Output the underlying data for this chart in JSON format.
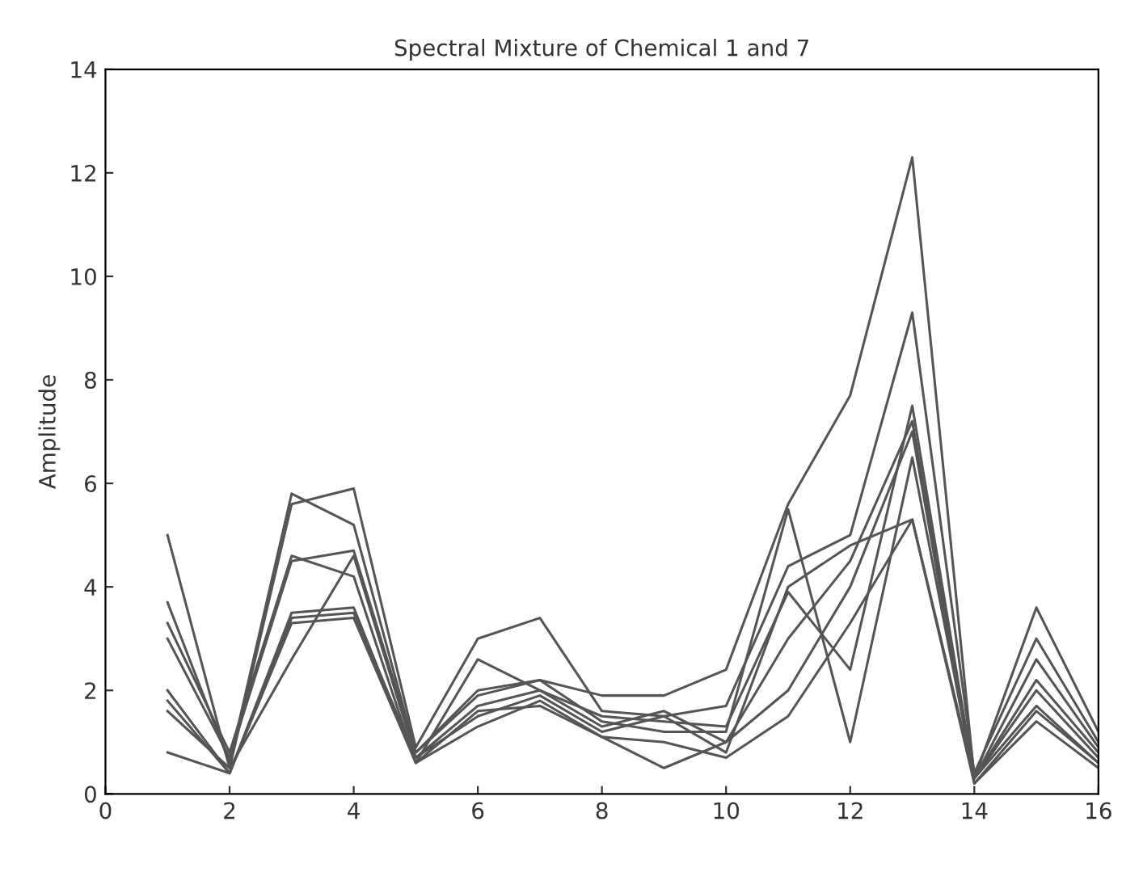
{
  "chart_data": {
    "type": "line",
    "title": "Spectral Mixture of Chemical 1 and 7",
    "ylabel": "Amplitude",
    "x": [
      1,
      2,
      3,
      4,
      5,
      6,
      7,
      8,
      9,
      10,
      11,
      12,
      13,
      14,
      15,
      16
    ],
    "series": [
      {
        "color": "#555555",
        "values": [
          3.7,
          0.6,
          5.8,
          5.2,
          0.8,
          2.0,
          2.2,
          1.9,
          1.9,
          2.4,
          5.6,
          7.7,
          12.3,
          0.3,
          3.6,
          1.2
        ]
      },
      {
        "color": "#555555",
        "values": [
          5.0,
          0.5,
          5.6,
          5.9,
          0.9,
          3.0,
          3.4,
          1.6,
          1.5,
          1.7,
          4.4,
          5.0,
          9.3,
          0.4,
          3.0,
          1.0
        ]
      },
      {
        "color": "#555555",
        "values": [
          3.3,
          0.8,
          4.6,
          4.2,
          0.6,
          2.6,
          2.0,
          1.5,
          1.4,
          1.3,
          3.9,
          2.4,
          7.5,
          0.3,
          2.6,
          0.9
        ]
      },
      {
        "color": "#555555",
        "values": [
          1.8,
          0.4,
          3.4,
          3.5,
          0.7,
          1.7,
          2.0,
          1.3,
          1.6,
          1.0,
          3.0,
          4.5,
          7.2,
          0.3,
          2.2,
          0.8
        ]
      },
      {
        "color": "#555555",
        "values": [
          0.8,
          0.4,
          3.3,
          3.4,
          0.6,
          1.6,
          1.7,
          1.1,
          1.0,
          0.7,
          1.5,
          3.3,
          5.3,
          0.2,
          1.6,
          0.6
        ]
      },
      {
        "color": "#555555",
        "values": [
          3.0,
          0.7,
          4.5,
          4.7,
          0.8,
          1.9,
          2.2,
          1.4,
          1.2,
          1.2,
          5.5,
          1.0,
          6.5,
          0.3,
          2.0,
          0.7
        ]
      },
      {
        "color": "#555555",
        "values": [
          2.0,
          0.4,
          3.5,
          3.6,
          0.6,
          1.3,
          1.8,
          1.1,
          0.5,
          1.0,
          2.0,
          4.0,
          7.0,
          0.2,
          1.4,
          0.5
        ]
      },
      {
        "color": "#555555",
        "values": [
          1.6,
          0.5,
          2.6,
          4.6,
          0.7,
          1.5,
          1.9,
          1.2,
          1.5,
          0.8,
          4.0,
          4.8,
          5.3,
          0.3,
          1.7,
          0.6
        ]
      }
    ],
    "xlim": [
      0,
      16
    ],
    "xticks": [
      0,
      2,
      4,
      6,
      8,
      10,
      12,
      14,
      16
    ],
    "ylim": [
      0,
      14
    ],
    "yticks": [
      0,
      2,
      4,
      6,
      8,
      10,
      12,
      14
    ],
    "grid": false,
    "marker": "none",
    "line_style": "solid"
  }
}
